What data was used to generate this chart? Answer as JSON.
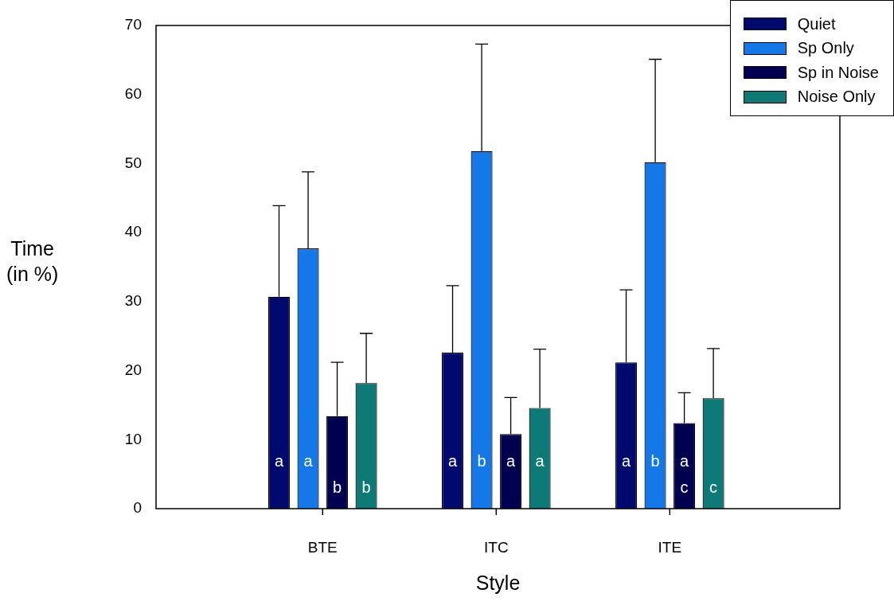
{
  "chart_data": {
    "type": "bar",
    "xlabel": "Style",
    "ylabel": "Time\n(in %)",
    "categories": [
      "BTE",
      "ITC",
      "ITE"
    ],
    "ylim": [
      0,
      70
    ],
    "yticks": [
      0,
      10,
      20,
      30,
      40,
      50,
      60,
      70
    ],
    "grid": false,
    "legend": "top right",
    "series": [
      {
        "name": "Quiet",
        "color": "#000a6e",
        "values": [
          30.7,
          22.6,
          21.2
        ],
        "errors": [
          [
            30.7,
            43.9
          ],
          [
            22.6,
            32.3
          ],
          [
            21.2,
            31.7
          ]
        ],
        "value_labels": [
          "a",
          "a",
          "a"
        ]
      },
      {
        "name": "Sp Only",
        "color": "#1478e8",
        "values": [
          37.7,
          51.8,
          50.2
        ],
        "errors": [
          [
            37.7,
            48.8
          ],
          [
            51.8,
            67.3
          ],
          [
            50.2,
            65.1
          ]
        ],
        "value_labels": [
          "a",
          "b",
          "b"
        ]
      },
      {
        "name": "Sp in Noise",
        "color": "#000050",
        "values": [
          13.4,
          10.8,
          12.4
        ],
        "errors": [
          [
            13.4,
            21.2
          ],
          [
            10.8,
            16.1
          ],
          [
            12.4,
            16.8
          ]
        ],
        "value_labels": [
          "\nb",
          "a",
          "a\nc"
        ]
      },
      {
        "name": "Noise Only",
        "color": "#0e7a78",
        "values": [
          18.2,
          14.6,
          16.0
        ],
        "errors": [
          [
            18.2,
            25.4
          ],
          [
            14.6,
            23.1
          ],
          [
            16.0,
            23.2
          ]
        ],
        "value_labels": [
          "\nb",
          "a",
          "\nc"
        ]
      }
    ]
  }
}
